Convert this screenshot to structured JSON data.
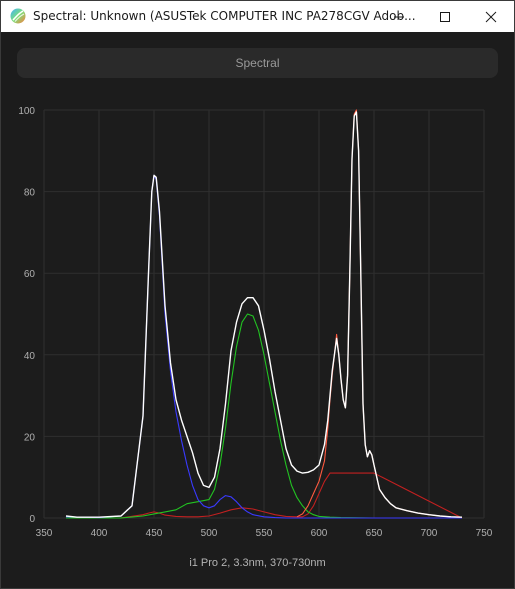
{
  "window": {
    "title": "Spectral: Unknown (ASUSTek COMPUTER INC PA278CGV Adob...",
    "icon": "app-logo-icon",
    "controls": {
      "minimize_icon": "minimize-icon",
      "maximize_icon": "maximize-icon",
      "close_icon": "close-icon"
    }
  },
  "header_button": {
    "label": "Spectral"
  },
  "caption": "i1 Pro 2, 3.3nm, 370-730nm",
  "colors": {
    "background": "#1c1c1c",
    "grid": "#2f2f2f",
    "white": "#ffffff",
    "blue": "#3a3aff",
    "green": "#22c322",
    "red": "#ff5a40",
    "darkred": "#c22020"
  },
  "chart_data": {
    "type": "line",
    "title": "",
    "xlabel": "",
    "ylabel": "",
    "xlim": [
      350,
      750
    ],
    "ylim": [
      0,
      100
    ],
    "xticks": [
      350,
      400,
      450,
      500,
      550,
      600,
      650,
      700,
      750
    ],
    "yticks": [
      0,
      20,
      40,
      60,
      80,
      100
    ],
    "grid": true,
    "series": [
      {
        "color": "#ffffff",
        "x": [
          370,
          380,
          400,
          420,
          430,
          440,
          445,
          448,
          450,
          452,
          455,
          460,
          465,
          470,
          475,
          480,
          485,
          490,
          495,
          500,
          505,
          510,
          515,
          520,
          525,
          530,
          535,
          540,
          545,
          550,
          555,
          560,
          565,
          570,
          575,
          580,
          585,
          590,
          595,
          600,
          605,
          608,
          610,
          612,
          614,
          616,
          618,
          620,
          622,
          624,
          626,
          628,
          630,
          632,
          634,
          636,
          638,
          640,
          642,
          644,
          646,
          648,
          650,
          655,
          660,
          665,
          670,
          680,
          690,
          700,
          710,
          720,
          730
        ],
        "y": [
          0.5,
          0.2,
          0.2,
          0.5,
          3,
          25,
          60,
          80,
          84,
          83.5,
          75,
          52,
          38,
          29,
          24,
          20,
          16,
          11,
          8,
          7.5,
          10,
          17,
          28,
          41,
          48,
          52.5,
          54,
          54,
          52,
          46,
          39,
          31,
          24,
          17,
          13,
          11.5,
          11,
          11.2,
          11.8,
          13,
          18,
          24,
          30,
          36,
          40,
          44,
          40,
          34,
          29,
          27,
          35,
          60,
          88,
          98.5,
          99.5,
          90,
          60,
          28,
          18,
          15,
          16.5,
          15.5,
          13,
          7,
          5,
          3.5,
          2.5,
          1.8,
          1.2,
          0.8,
          0.5,
          0.3,
          0.2
        ]
      },
      {
        "color": "#3a3aff",
        "x": [
          370,
          400,
          420,
          430,
          440,
          445,
          448,
          450,
          452,
          455,
          460,
          465,
          470,
          475,
          480,
          485,
          490,
          495,
          500,
          505,
          510,
          515,
          520,
          525,
          530,
          535,
          540,
          550,
          560,
          570,
          580,
          600,
          650,
          730
        ],
        "y": [
          0.3,
          0.1,
          0.5,
          3,
          25,
          60,
          80,
          84,
          83,
          74,
          50,
          36,
          26,
          19,
          13,
          8,
          4.5,
          3,
          2.5,
          3,
          4.5,
          5.5,
          5.2,
          4,
          2.5,
          1.5,
          0.8,
          0.3,
          0.1,
          0,
          0,
          0,
          0,
          0
        ]
      },
      {
        "color": "#22c322",
        "x": [
          370,
          420,
          440,
          450,
          460,
          470,
          480,
          490,
          500,
          505,
          510,
          515,
          520,
          525,
          530,
          535,
          540,
          545,
          550,
          555,
          560,
          565,
          570,
          575,
          580,
          585,
          590,
          595,
          600,
          610,
          620,
          650,
          730
        ],
        "y": [
          0,
          0,
          0.5,
          1,
          1.5,
          2,
          3.5,
          4,
          4.5,
          7,
          13,
          22,
          33,
          42,
          48,
          50,
          49.5,
          46,
          40,
          33,
          26,
          19,
          13,
          8,
          5,
          3,
          1.5,
          0.8,
          0.4,
          0.2,
          0.1,
          0,
          0
        ]
      },
      {
        "color": "#c22020",
        "x": [
          370,
          420,
          440,
          445,
          450,
          455,
          460,
          470,
          480,
          490,
          500,
          510,
          520,
          530,
          540,
          550,
          560,
          570,
          580,
          585,
          590,
          595,
          600,
          605,
          610,
          650,
          730
        ],
        "y": [
          0,
          0,
          0.8,
          1.2,
          1.5,
          1.2,
          0.7,
          0.4,
          0.3,
          0.3,
          0.5,
          1.2,
          2,
          2.5,
          2.2,
          1.5,
          0.8,
          0.4,
          0.3,
          0.3,
          1,
          3,
          6,
          9,
          11,
          11,
          0
        ]
      },
      {
        "color": "#ff5a40",
        "x": [
          580,
          585,
          590,
          595,
          600,
          605,
          608,
          610,
          612,
          614,
          616,
          618,
          620,
          622,
          624,
          626,
          628,
          630,
          632,
          634,
          636,
          638,
          640,
          642,
          644,
          646,
          648,
          650,
          655,
          660,
          665,
          670,
          680,
          690,
          700,
          710,
          720,
          730
        ],
        "y": [
          0.3,
          1,
          3,
          6,
          9,
          14,
          22,
          29,
          35,
          40,
          45,
          40,
          34,
          29,
          27,
          35,
          60,
          88,
          99,
          100,
          90,
          60,
          28,
          18,
          15,
          16.5,
          15.5,
          13,
          7,
          5,
          3.5,
          2.5,
          1.8,
          1.2,
          0.8,
          0.5,
          0.3,
          0.2
        ]
      }
    ]
  }
}
